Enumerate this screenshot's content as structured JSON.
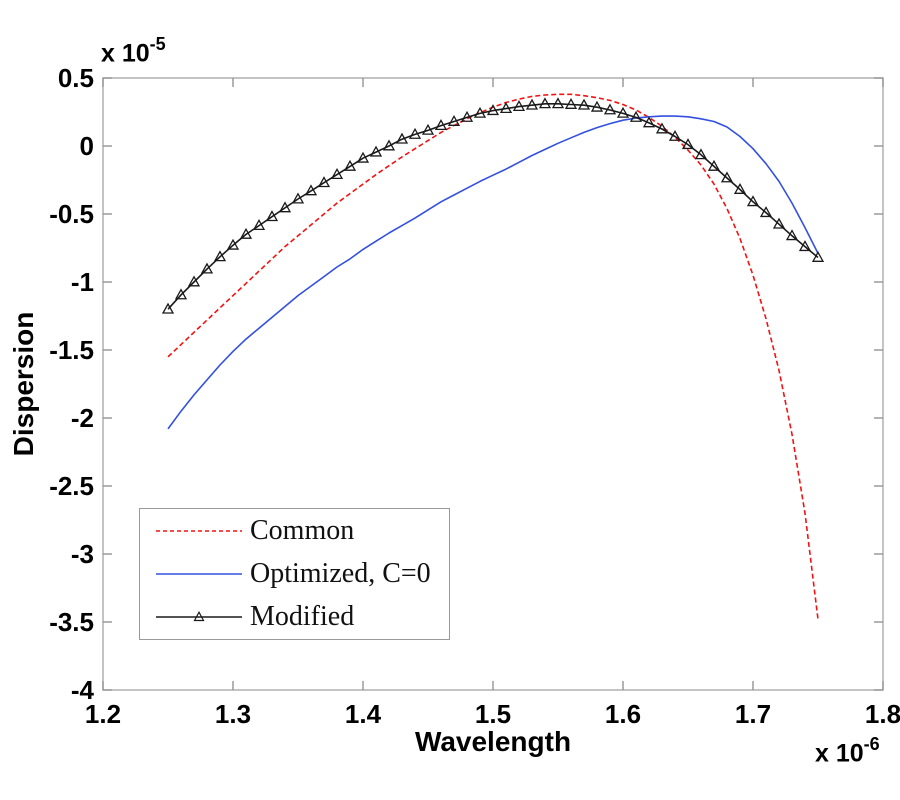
{
  "figure": {
    "background": "#ffffff",
    "y_exponent": {
      "base": "x 10",
      "power": "-5"
    },
    "x_exponent": {
      "base": "x 10",
      "power": "-6"
    }
  },
  "chart_data": {
    "type": "line",
    "title": "",
    "xlabel": "Wavelength",
    "ylabel": "Dispersion",
    "x_unit_scale": "1e-6",
    "y_unit_scale": "1e-5",
    "xlim": [
      1.2,
      1.8
    ],
    "ylim": [
      -4,
      0.5
    ],
    "grid": false,
    "legend_position": "lower-left",
    "axis_color": "#a3a3a3",
    "tick_color": "#8c8c8c",
    "x_ticks": [
      1.2,
      1.3,
      1.4,
      1.5,
      1.6,
      1.7,
      1.8
    ],
    "x_tick_labels": [
      "1.2",
      "1.3",
      "1.4",
      "1.5",
      "1.6",
      "1.7",
      "1.8"
    ],
    "y_ticks": [
      0.5,
      0,
      -0.5,
      -1,
      -1.5,
      -2,
      -2.5,
      -3,
      -3.5,
      -4
    ],
    "y_tick_labels": [
      "0.5",
      "0",
      "-0.5",
      "-1",
      "-1.5",
      "-2",
      "-2.5",
      "-3",
      "-3.5",
      "-4"
    ],
    "x": [
      1.25,
      1.26,
      1.27,
      1.28,
      1.29,
      1.3,
      1.31,
      1.32,
      1.33,
      1.34,
      1.35,
      1.36,
      1.37,
      1.38,
      1.39,
      1.4,
      1.41,
      1.42,
      1.43,
      1.44,
      1.45,
      1.46,
      1.47,
      1.48,
      1.49,
      1.5,
      1.51,
      1.52,
      1.53,
      1.54,
      1.55,
      1.56,
      1.57,
      1.58,
      1.59,
      1.6,
      1.61,
      1.62,
      1.63,
      1.64,
      1.65,
      1.66,
      1.67,
      1.68,
      1.69,
      1.7,
      1.71,
      1.72,
      1.73,
      1.74,
      1.75
    ],
    "series": [
      {
        "name": "Common",
        "color": "#f31111",
        "style": "dashed",
        "marker": "none",
        "y": [
          -1.55,
          -1.46,
          -1.37,
          -1.28,
          -1.19,
          -1.1,
          -1.01,
          -0.92,
          -0.83,
          -0.74,
          -0.66,
          -0.58,
          -0.5,
          -0.42,
          -0.35,
          -0.28,
          -0.21,
          -0.145,
          -0.08,
          -0.02,
          0.04,
          0.1,
          0.15,
          0.2,
          0.245,
          0.285,
          0.32,
          0.345,
          0.365,
          0.375,
          0.38,
          0.38,
          0.37,
          0.355,
          0.335,
          0.305,
          0.265,
          0.21,
          0.145,
          0.065,
          -0.03,
          -0.14,
          -0.28,
          -0.46,
          -0.68,
          -0.95,
          -1.27,
          -1.65,
          -2.12,
          -2.7,
          -3.48
        ]
      },
      {
        "name": "Optimized, C=0",
        "color": "#3350e0",
        "style": "solid",
        "marker": "none",
        "y": [
          -2.08,
          -1.95,
          -1.83,
          -1.72,
          -1.61,
          -1.51,
          -1.42,
          -1.34,
          -1.26,
          -1.18,
          -1.1,
          -1.03,
          -0.96,
          -0.89,
          -0.83,
          -0.76,
          -0.7,
          -0.64,
          -0.585,
          -0.53,
          -0.47,
          -0.41,
          -0.36,
          -0.31,
          -0.26,
          -0.215,
          -0.17,
          -0.12,
          -0.07,
          -0.025,
          0.02,
          0.06,
          0.1,
          0.135,
          0.165,
          0.19,
          0.205,
          0.215,
          0.22,
          0.22,
          0.215,
          0.2,
          0.18,
          0.14,
          0.07,
          -0.02,
          -0.13,
          -0.26,
          -0.42,
          -0.6,
          -0.79
        ]
      },
      {
        "name": "Modified",
        "color": "#1a1a1a",
        "style": "solid",
        "marker": "triangle",
        "y": [
          -1.2,
          -1.095,
          -1.0,
          -0.905,
          -0.815,
          -0.73,
          -0.65,
          -0.585,
          -0.52,
          -0.455,
          -0.39,
          -0.33,
          -0.27,
          -0.21,
          -0.15,
          -0.09,
          -0.045,
          0.0,
          0.05,
          0.085,
          0.115,
          0.15,
          0.18,
          0.21,
          0.24,
          0.26,
          0.275,
          0.29,
          0.3,
          0.31,
          0.31,
          0.305,
          0.3,
          0.285,
          0.265,
          0.24,
          0.21,
          0.17,
          0.125,
          0.07,
          0.01,
          -0.065,
          -0.15,
          -0.235,
          -0.32,
          -0.41,
          -0.49,
          -0.575,
          -0.66,
          -0.74,
          -0.82
        ]
      }
    ]
  }
}
